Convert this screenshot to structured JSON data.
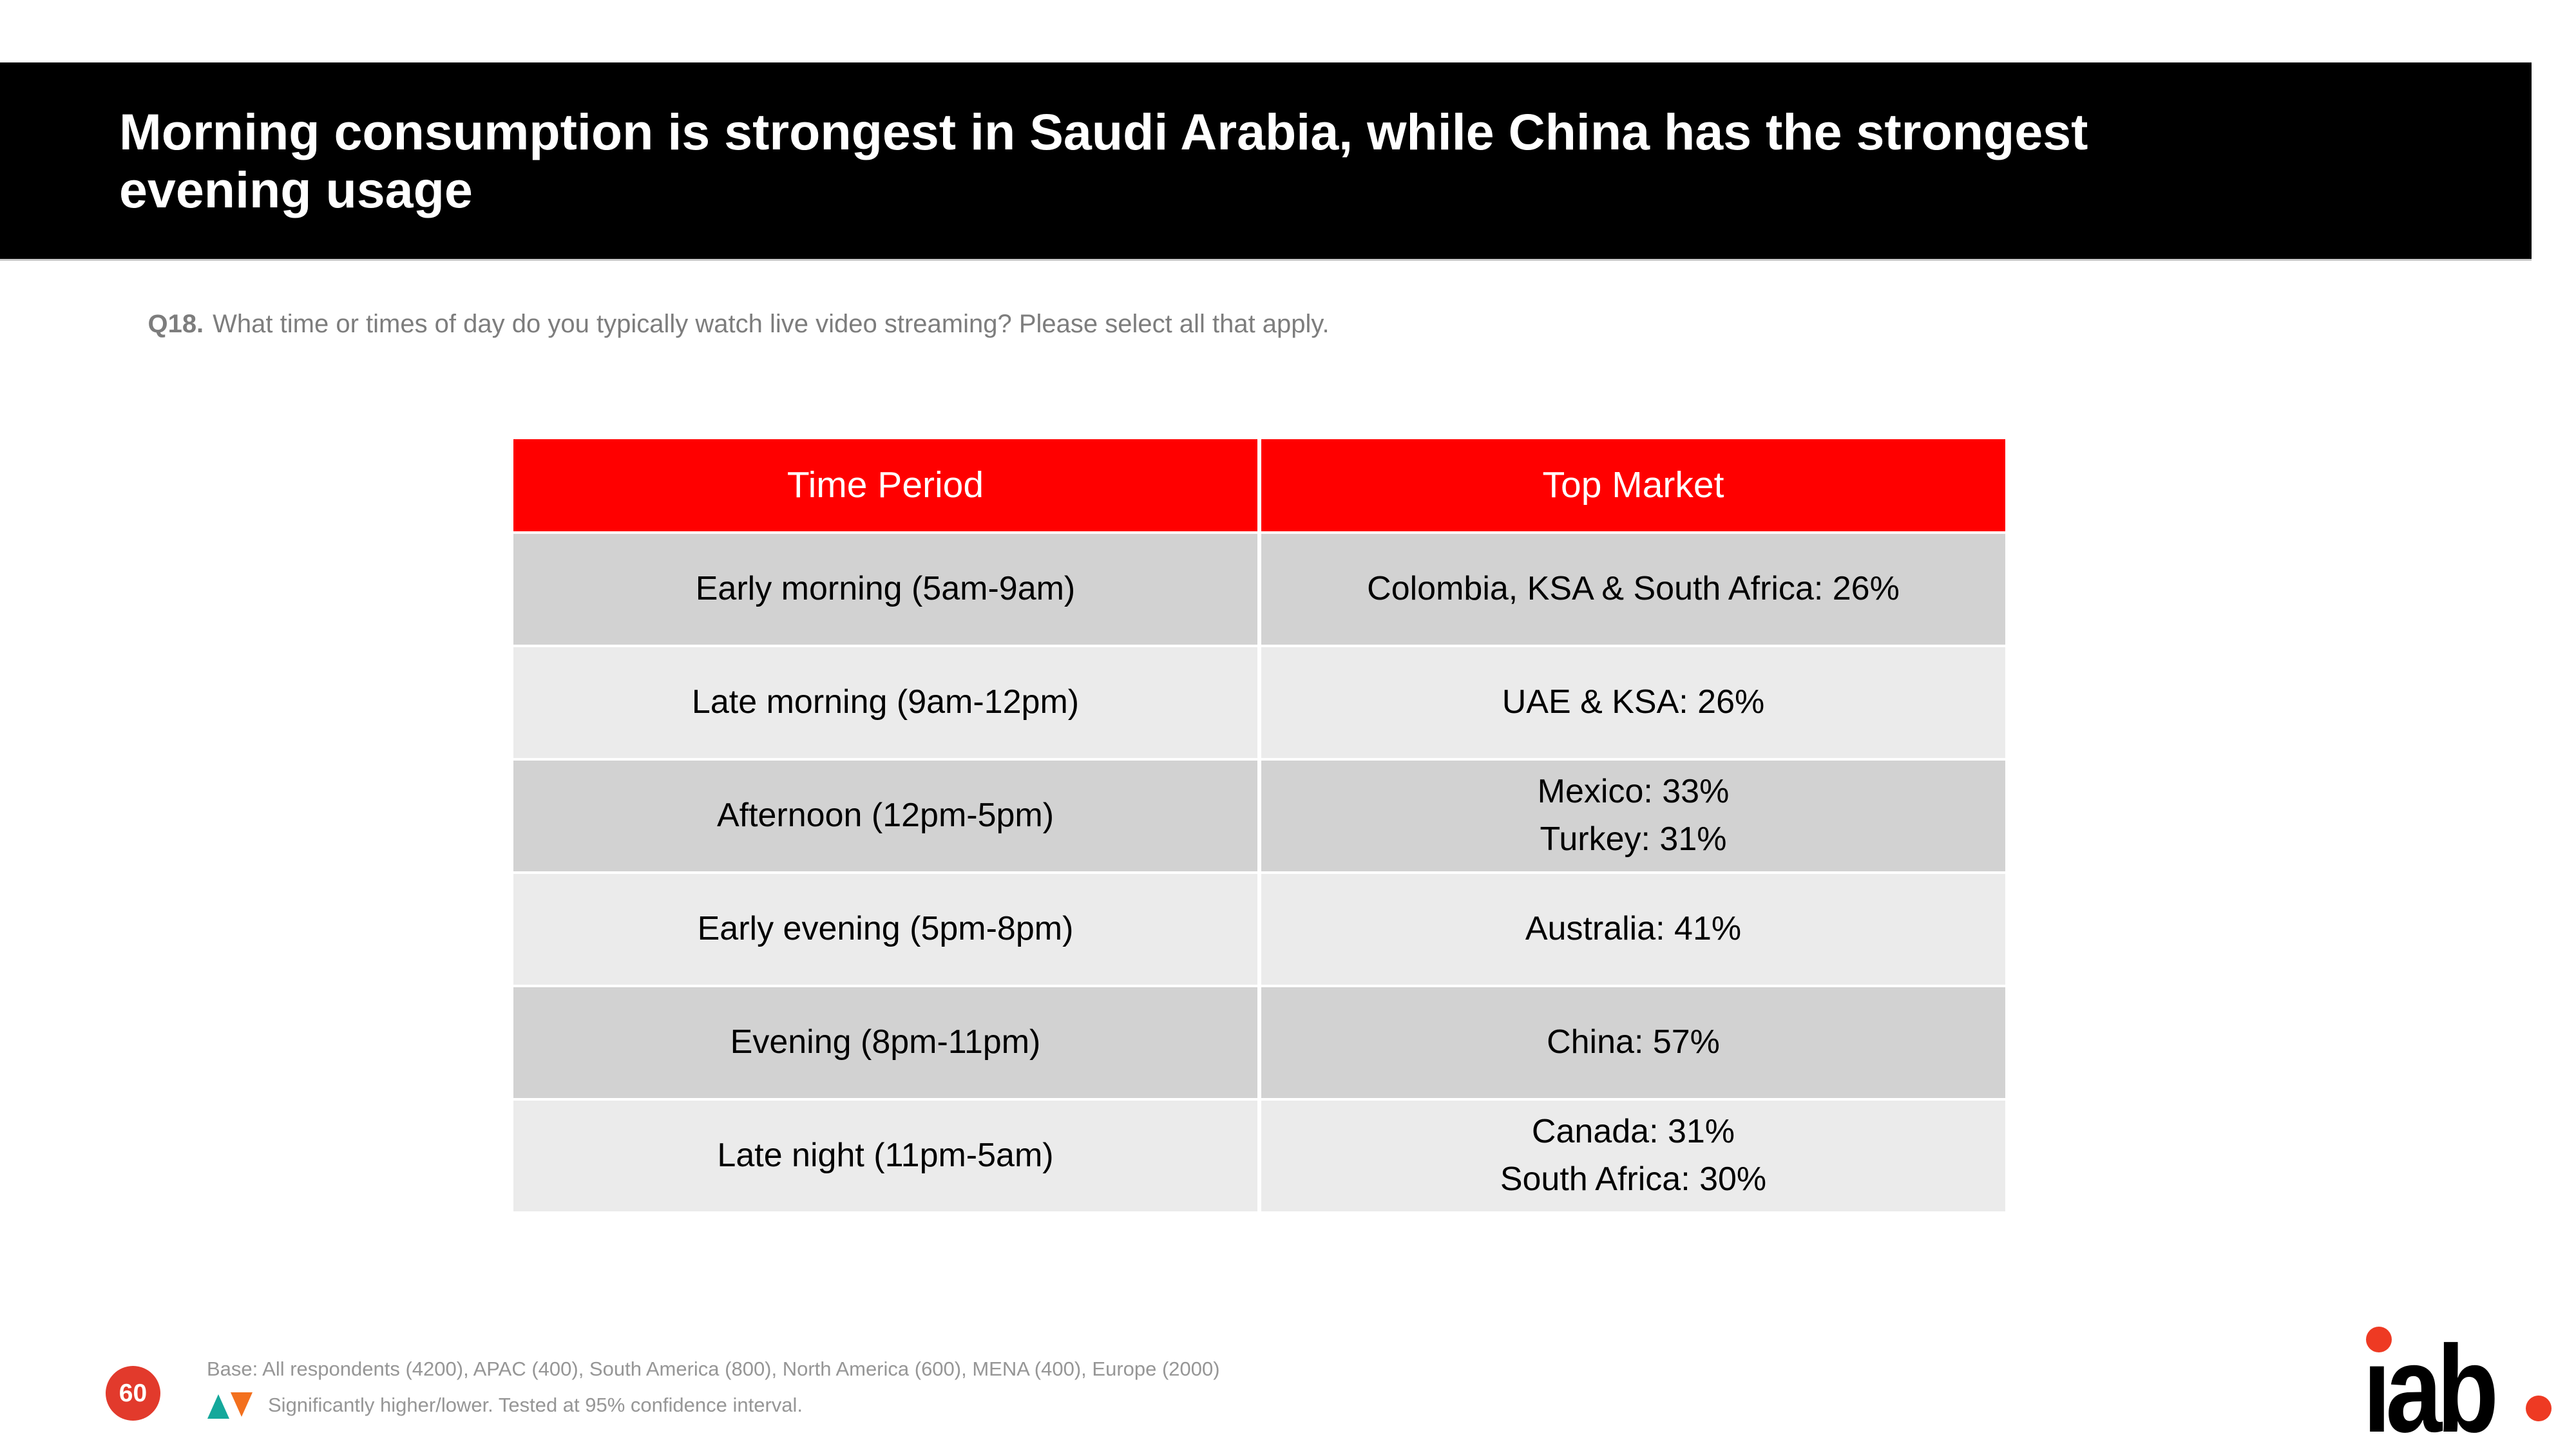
{
  "colors": {
    "header-red": "#ff0000",
    "badge-red": "#e23a2c",
    "logo-red": "#ee3a23",
    "row-dark": "#d2d2d2",
    "row-light": "#ebebeb",
    "text-gray": "#7d7d7d",
    "footnote-gray": "#969696",
    "sig-up-teal": "#14a89b",
    "sig-down-orange": "#f3701e"
  },
  "header": {
    "title": "Morning consumption is strongest in Saudi Arabia, while China has the strongest\nevening usage"
  },
  "question": {
    "label": "Q18.",
    "text": "What time or times of day do you typically watch live video streaming? Please select all that apply."
  },
  "table": {
    "headers": [
      "Time Period",
      "Top Market"
    ],
    "rows": [
      {
        "time_period": "Early morning (5am-9am)",
        "top_market": "Colombia, KSA & South Africa: 26%"
      },
      {
        "time_period": "Late morning (9am-12pm)",
        "top_market": "UAE & KSA: 26%"
      },
      {
        "time_period": "Afternoon (12pm-5pm)",
        "top_market": "Mexico: 33%\nTurkey: 31%"
      },
      {
        "time_period": "Early evening (5pm-8pm)",
        "top_market": "Australia: 41%"
      },
      {
        "time_period": "Evening (8pm-11pm)",
        "top_market": "China: 57%"
      },
      {
        "time_period": "Late night (11pm-5am)",
        "top_market": "Canada: 31%\nSouth Africa: 30%"
      }
    ]
  },
  "footer": {
    "page_number": "60",
    "base_note": "Base: All respondents (4200), APAC (400), South America (800), North America (600), MENA (400), Europe (2000)",
    "significance_note": "Significantly higher/lower. Tested at 95% confidence interval.",
    "logo_text": "iab."
  }
}
